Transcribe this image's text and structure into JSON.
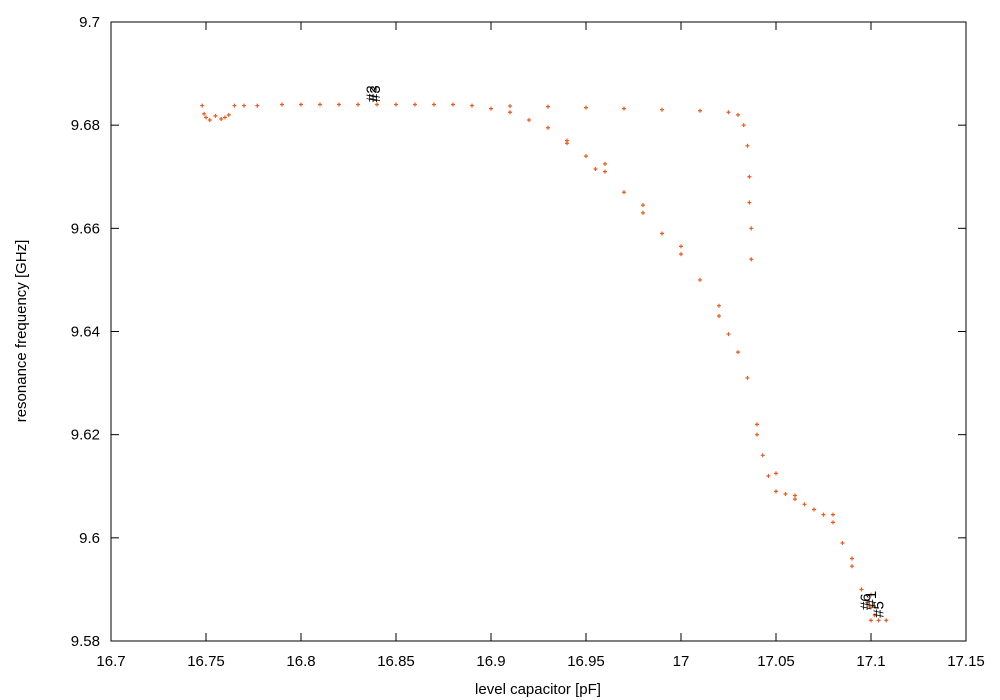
{
  "chart_data": {
    "type": "scatter",
    "xlabel": "level capacitor [pF]",
    "ylabel": "resonance frequency [GHz]",
    "xlim": [
      16.7,
      17.15
    ],
    "ylim": [
      9.58,
      9.7
    ],
    "xticks": [
      16.7,
      16.75,
      16.8,
      16.85,
      16.9,
      16.95,
      17,
      17.05,
      17.1,
      17.15
    ],
    "yticks": [
      9.58,
      9.6,
      9.62,
      9.64,
      9.66,
      9.68,
      9.7
    ],
    "grid": false,
    "x": [
      16.748,
      16.749,
      16.75,
      16.752,
      16.755,
      16.758,
      16.76,
      16.762,
      16.765,
      16.77,
      16.777,
      16.79,
      16.8,
      16.81,
      16.82,
      16.83,
      16.84,
      16.85,
      16.86,
      16.87,
      16.88,
      16.89,
      16.9,
      16.91,
      16.93,
      16.95,
      16.97,
      16.99,
      17.01,
      17.025,
      17.03,
      17.033,
      17.035,
      17.036,
      17.036,
      17.037,
      17.037,
      16.91,
      16.92,
      16.93,
      16.94,
      16.95,
      16.955,
      16.96,
      16.97,
      16.98,
      16.99,
      17.0,
      17.01,
      17.02,
      17.025,
      17.03,
      17.035,
      17.04,
      17.043,
      17.046,
      17.05,
      17.055,
      17.06,
      17.065,
      17.07,
      17.075,
      17.08,
      17.085,
      17.09,
      17.095,
      17.098,
      17.1,
      17.102,
      17.1,
      17.104,
      17.108,
      16.94,
      16.96,
      16.98,
      17.0,
      17.02,
      17.04,
      17.05,
      17.06,
      17.08,
      17.09,
      17.1
    ],
    "series": [
      {
        "color": "#ec5a1c",
        "values": [
          9.6838,
          9.6822,
          9.6815,
          9.681,
          9.6818,
          9.6812,
          9.6815,
          9.682,
          9.6838,
          9.6838,
          9.6838,
          9.684,
          9.684,
          9.684,
          9.684,
          9.684,
          9.684,
          9.684,
          9.684,
          9.684,
          9.684,
          9.6838,
          9.6832,
          9.6837,
          9.6836,
          9.6834,
          9.6832,
          9.683,
          9.6828,
          9.6825,
          9.682,
          9.68,
          9.676,
          9.67,
          9.665,
          9.66,
          9.654,
          9.6825,
          9.681,
          9.6795,
          9.677,
          9.674,
          9.6715,
          9.671,
          9.667,
          9.663,
          9.659,
          9.655,
          9.65,
          9.643,
          9.6395,
          9.636,
          9.631,
          9.622,
          9.616,
          9.612,
          9.609,
          9.6085,
          9.6075,
          9.6065,
          9.6055,
          9.6045,
          9.603,
          9.599,
          9.5945,
          9.59,
          9.5875,
          9.5865,
          9.585,
          9.584,
          9.584,
          9.584,
          9.6765,
          9.6725,
          9.6645,
          9.6565,
          9.645,
          9.62,
          9.6125,
          9.6082,
          9.6045,
          9.596,
          9.589
        ]
      }
    ],
    "annotations": [
      {
        "text": "#2",
        "x": 16.837,
        "y": 9.6845
      },
      {
        "text": "#3",
        "x": 16.839,
        "y": 9.6845
      },
      {
        "text": "#6",
        "x": 17.097,
        "y": 9.586
      },
      {
        "text": "#1",
        "x": 17.1,
        "y": 9.5865
      },
      {
        "text": "#5",
        "x": 17.104,
        "y": 9.5845
      }
    ]
  }
}
